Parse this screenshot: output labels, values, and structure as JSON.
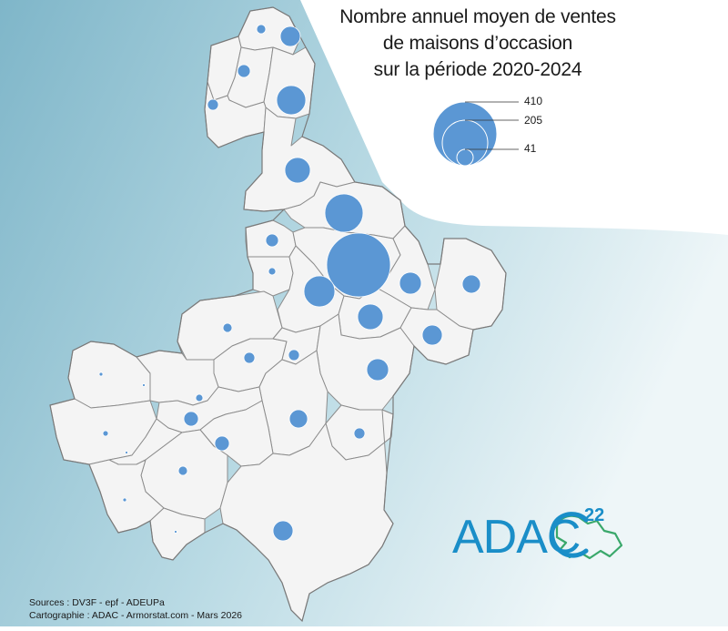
{
  "title": {
    "line1": "Nombre annuel moyen de ventes",
    "line2": "de maisons d’occasion",
    "line3": "sur la période 2020-2024"
  },
  "legend": {
    "values": [
      "410",
      "205",
      "41"
    ]
  },
  "sources": {
    "line1": "Sources : DV3F - epf - ADEUPa",
    "line2": "Cartographie : ADAC - Armorstat.com - Mars 2026"
  },
  "logo": {
    "text": "ADAC",
    "number": "22"
  },
  "colors": {
    "sea_dark": "#86bccf",
    "sea_light": "#e8f3f6",
    "land": "#ffffff",
    "commune_fill": "#f4f4f4",
    "commune_border": "#8a8a8a",
    "symbol": "#5b97d4",
    "logo_blue": "#1a8ec8",
    "logo_green": "#3aa86b"
  },
  "symbols_note": "proportional circles per commune"
}
